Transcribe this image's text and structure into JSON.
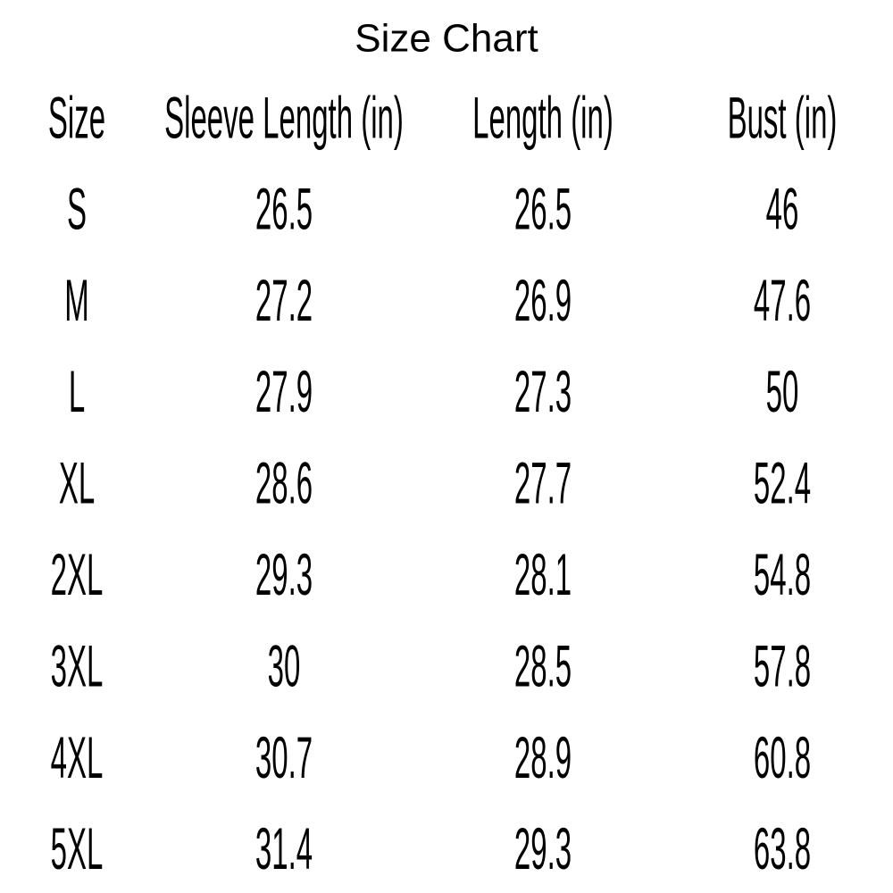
{
  "header": {
    "title": "Size Chart"
  },
  "table": {
    "columns": [
      "Size",
      "Sleeve Length (in)",
      "Length (in)",
      "Bust (in)"
    ],
    "rows": [
      [
        "S",
        "26.5",
        "26.5",
        "46"
      ],
      [
        "M",
        "27.2",
        "26.9",
        "47.6"
      ],
      [
        "L",
        "27.9",
        "27.3",
        "50"
      ],
      [
        "XL",
        "28.6",
        "27.7",
        "52.4"
      ],
      [
        "2XL",
        "29.3",
        "28.1",
        "54.8"
      ],
      [
        "3XL",
        "30",
        "28.5",
        "57.8"
      ],
      [
        "4XL",
        "30.7",
        "28.9",
        "60.8"
      ],
      [
        "5XL",
        "31.4",
        "29.3",
        "63.8"
      ]
    ]
  }
}
